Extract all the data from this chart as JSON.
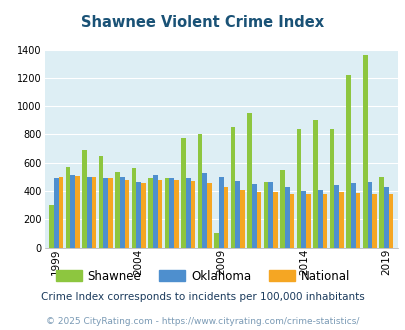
{
  "title": "Shawnee Violent Crime Index",
  "years": [
    1999,
    2000,
    2001,
    2002,
    2003,
    2004,
    2005,
    2006,
    2007,
    2008,
    2009,
    2010,
    2011,
    2012,
    2013,
    2014,
    2015,
    2016,
    2017,
    2018,
    2019
  ],
  "shawnee": [
    300,
    570,
    690,
    650,
    535,
    560,
    490,
    490,
    775,
    805,
    105,
    855,
    950,
    465,
    550,
    840,
    900,
    840,
    1220,
    1360,
    495
  ],
  "oklahoma": [
    490,
    510,
    500,
    490,
    500,
    460,
    510,
    490,
    490,
    525,
    500,
    470,
    450,
    465,
    425,
    400,
    410,
    445,
    455,
    465,
    430
  ],
  "national": [
    500,
    505,
    500,
    490,
    480,
    455,
    480,
    475,
    470,
    455,
    430,
    405,
    390,
    395,
    380,
    375,
    375,
    395,
    385,
    375,
    375
  ],
  "shawnee_color": "#8dc63f",
  "oklahoma_color": "#4e8fce",
  "national_color": "#f5a623",
  "background_color": "#ddeef4",
  "ylim": [
    0,
    1400
  ],
  "yticks": [
    0,
    200,
    400,
    600,
    800,
    1000,
    1200,
    1400
  ],
  "xlabel_years": [
    1999,
    2004,
    2009,
    2014,
    2019
  ],
  "footnote1": "Crime Index corresponds to incidents per 100,000 inhabitants",
  "footnote2": "© 2025 CityRating.com - https://www.cityrating.com/crime-statistics/",
  "title_color": "#1a5276",
  "footnote1_color": "#1a3a5c",
  "footnote2_color": "#7a9ab5"
}
